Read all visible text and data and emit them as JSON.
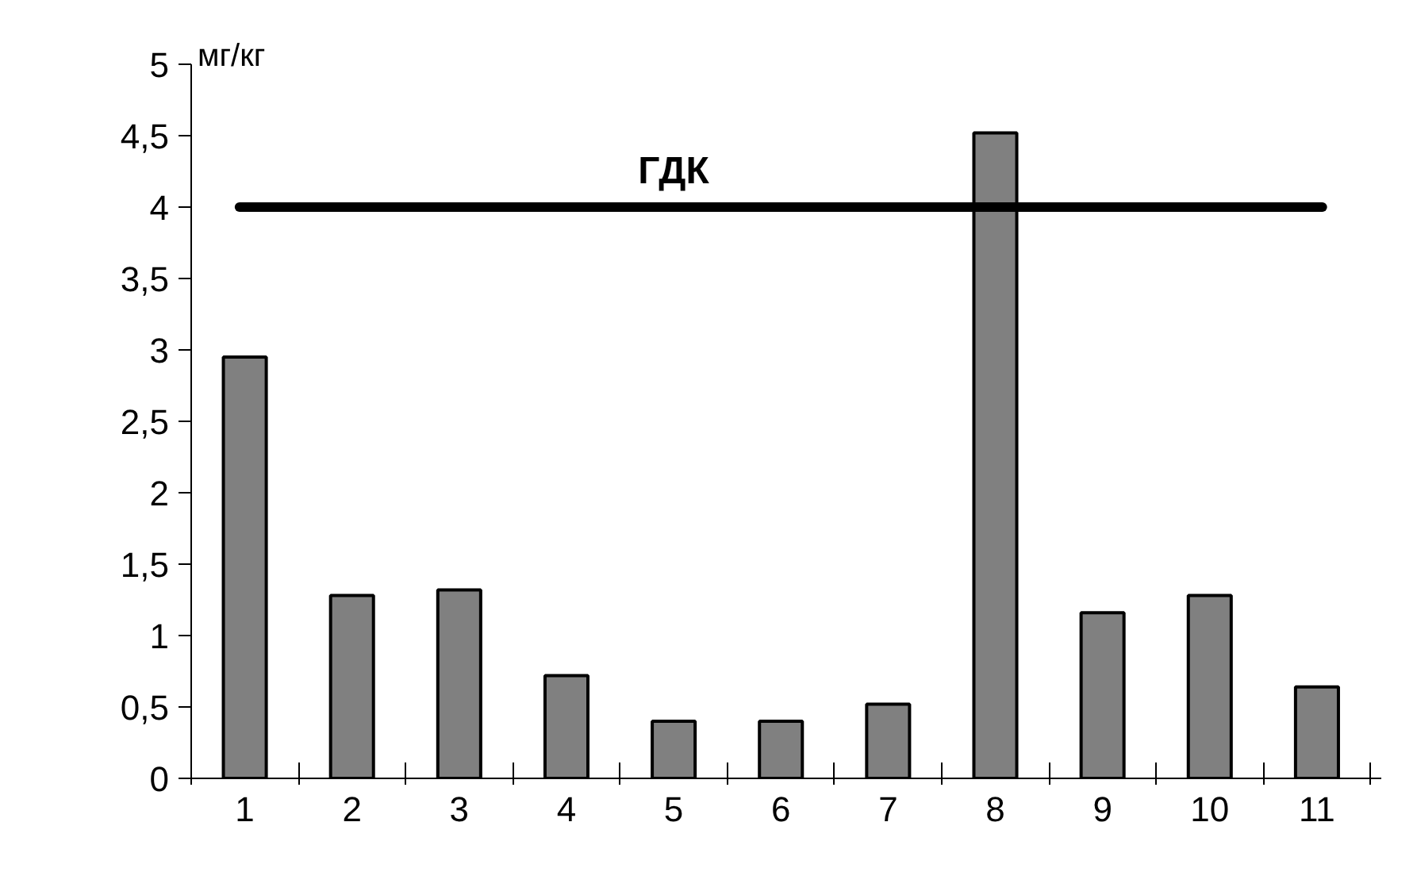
{
  "chart_data": {
    "type": "bar",
    "ylabel": "мг/кг",
    "categories": [
      "1",
      "2",
      "3",
      "4",
      "5",
      "6",
      "7",
      "8",
      "9",
      "10",
      "11"
    ],
    "values": [
      2.95,
      1.28,
      1.32,
      0.72,
      0.4,
      0.4,
      0.52,
      4.52,
      1.16,
      1.28,
      0.64
    ],
    "color": "#808080",
    "ylim": [
      0,
      5
    ],
    "yticks": [
      0,
      {
        "value": 0.5,
        "label": "0,5"
      },
      1,
      {
        "value": 1.5,
        "label": "1,5"
      },
      2,
      {
        "value": 2.5,
        "label": "2,5"
      },
      3,
      {
        "value": 3.5,
        "label": "3,5"
      },
      4,
      {
        "value": 4.5,
        "label": "4,5"
      },
      5
    ],
    "ref_lines": [
      {
        "axis": "y",
        "value": 4,
        "label": "ГДК",
        "color": "#000000"
      }
    ],
    "grid": false
  }
}
